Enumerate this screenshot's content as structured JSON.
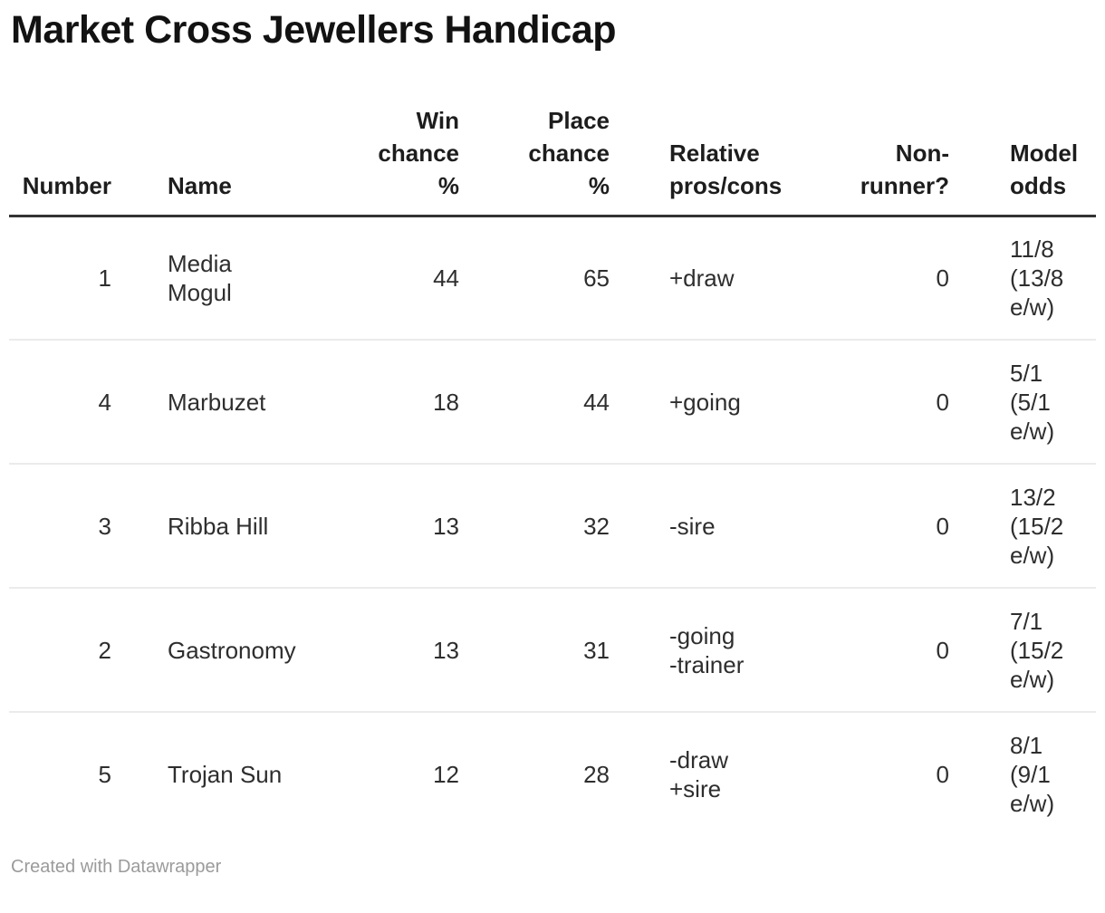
{
  "title": "Market Cross Jewellers Handicap",
  "table": {
    "headers": {
      "number": "Number",
      "name": "Name",
      "win_chance": "Win\nchance\n%",
      "place_chance": "Place\nchance\n%",
      "pros_cons": "Relative\npros/cons",
      "non_runner": "Non-\nrunner?",
      "model_odds": "Model\nodds"
    },
    "rows": [
      {
        "number": "1",
        "name": "Media Mogul",
        "win_chance": "44",
        "place_chance": "65",
        "pros_cons": "+draw",
        "non_runner": "0",
        "model_odds": "11/8 (13/8 e/w)"
      },
      {
        "number": "4",
        "name": "Marbuzet",
        "win_chance": "18",
        "place_chance": "44",
        "pros_cons": "+going",
        "non_runner": "0",
        "model_odds": "5/1 (5/1 e/w)"
      },
      {
        "number": "3",
        "name": "Ribba Hill",
        "win_chance": "13",
        "place_chance": "32",
        "pros_cons": "-sire",
        "non_runner": "0",
        "model_odds": "13/2 (15/2 e/w)"
      },
      {
        "number": "2",
        "name": "Gastronomy",
        "win_chance": "13",
        "place_chance": "31",
        "pros_cons": "-going\n-trainer",
        "non_runner": "0",
        "model_odds": "7/1 (15/2 e/w)"
      },
      {
        "number": "5",
        "name": "Trojan Sun",
        "win_chance": "12",
        "place_chance": "28",
        "pros_cons": "-draw\n+sire",
        "non_runner": "0",
        "model_odds": "8/1 (9/1 e/w)"
      }
    ]
  },
  "footer": {
    "credit": "Created with Datawrapper"
  },
  "colors": {
    "title_text": "#121212",
    "header_text": "#1d1d1d",
    "body_text": "#2e2e2e",
    "header_rule": "#333333",
    "row_divider": "#ebebeb",
    "footer_text": "#9b9b9b",
    "background": "#ffffff"
  },
  "chart_data": {
    "type": "table",
    "title": "Market Cross Jewellers Handicap",
    "columns": [
      "Number",
      "Name",
      "Win chance %",
      "Place chance %",
      "Relative pros/cons",
      "Non-runner?",
      "Model odds"
    ],
    "column_alignments": [
      "right",
      "left",
      "right",
      "right",
      "left",
      "right",
      "left"
    ],
    "rows": [
      [
        1,
        "Media Mogul",
        44,
        65,
        "+draw",
        0,
        "11/8 (13/8 e/w)"
      ],
      [
        4,
        "Marbuzet",
        18,
        44,
        "+going",
        0,
        "5/1 (5/1 e/w)"
      ],
      [
        3,
        "Ribba Hill",
        13,
        32,
        "-sire",
        0,
        "13/2 (15/2 e/w)"
      ],
      [
        2,
        "Gastronomy",
        13,
        31,
        "-going -trainer",
        0,
        "7/1 (15/2 e/w)"
      ],
      [
        5,
        "Trojan Sun",
        12,
        28,
        "-draw +sire",
        0,
        "8/1 (9/1 e/w)"
      ]
    ],
    "credit": "Created with Datawrapper"
  }
}
